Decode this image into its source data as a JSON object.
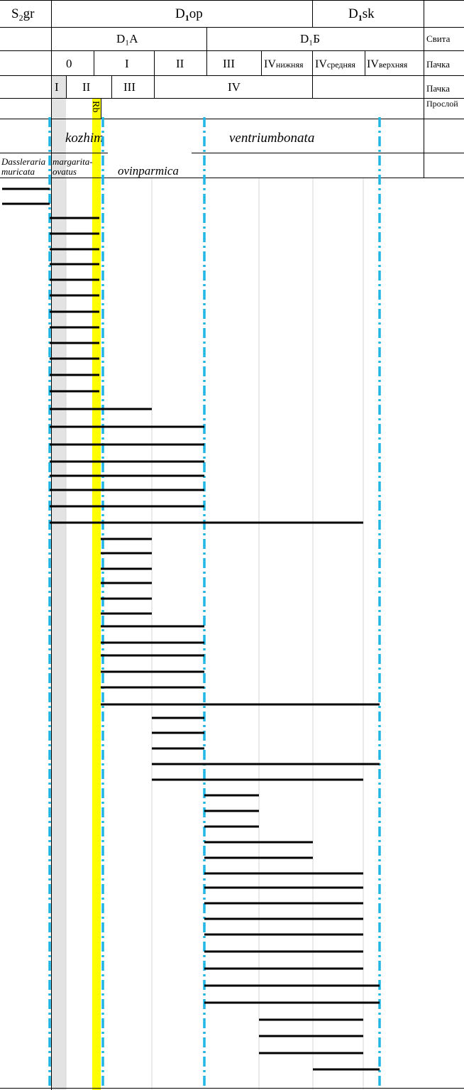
{
  "header": {
    "row1": {
      "c1": {
        "main": "S",
        "sub": "2",
        "rest": "gr"
      },
      "c2": {
        "main": "D",
        "sub": "1",
        "rest": "op"
      },
      "c3": {
        "main": "D",
        "sub": "1",
        "rest": "sk"
      },
      "right": "Свита"
    },
    "row2": {
      "a": "D₁A",
      "b": "D₁Б"
    },
    "row3": {
      "cells": [
        {
          "main": "0",
          "sub": ""
        },
        {
          "main": "I",
          "sub": ""
        },
        {
          "main": "II",
          "sub": ""
        },
        {
          "main": "III",
          "sub": ""
        },
        {
          "main": "IV",
          "sub": "нижняя"
        },
        {
          "main": "IV",
          "sub": "средняя"
        },
        {
          "main": "IV",
          "sub": "верхняя"
        }
      ],
      "right": "Пачка"
    },
    "row4": {
      "cells": [
        "I",
        "II",
        "III",
        "IV"
      ],
      "right": "Пачка"
    },
    "row5": {
      "rb": "Rb",
      "right": "Прослой"
    },
    "row6": {
      "left": "kozhim",
      "right": "ventriumbonata"
    },
    "row7": {
      "a1": "Dassleraria",
      "a2": "muricata",
      "b1": "margarita-",
      "b2": "ovatus",
      "c": "ovinparmica"
    }
  },
  "colors": {
    "zone_line": "#1fb6e6",
    "highlight": "#ffff00",
    "grey_band": "#e3e3e3",
    "range_bar": "#000000"
  }
}
